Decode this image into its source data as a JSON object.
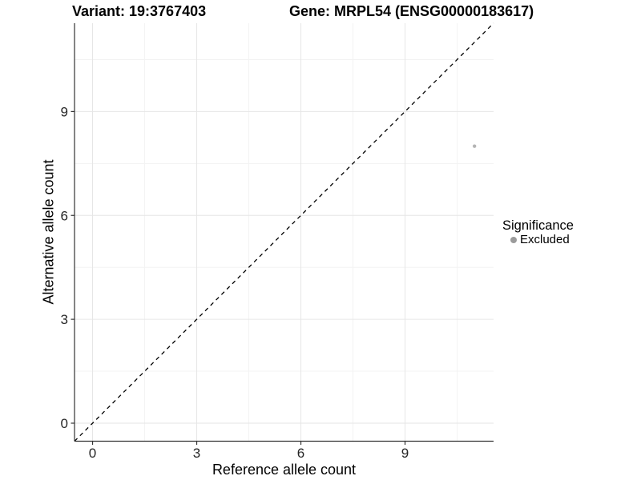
{
  "figure": {
    "background": "#ffffff"
  },
  "chart_data": {
    "type": "scatter",
    "title_parts": [
      "Variant: 19:3767403",
      "Gene: MRPL54 (ENSG00000183617)"
    ],
    "xlabel": "Reference allele count",
    "ylabel": "Alternative allele count",
    "xlim": [
      -0.52,
      11.55
    ],
    "ylim": [
      -0.52,
      11.55
    ],
    "xticks": [
      0,
      3,
      6,
      9
    ],
    "yticks": [
      0,
      3,
      6,
      9
    ],
    "xticks_minor": [
      1.5,
      4.5,
      7.5,
      10.5
    ],
    "yticks_minor": [
      1.5,
      4.5,
      7.5,
      10.5
    ],
    "grid": true,
    "series": [
      {
        "name": "Excluded",
        "points": [
          {
            "x": 11,
            "y": 8
          }
        ],
        "color": "#b4b4b4",
        "radius": 2.2
      }
    ],
    "identity_line": {
      "style": "dashed",
      "color": "#000000",
      "equation": "y = x"
    },
    "legend": {
      "title": "Significance",
      "position": "right",
      "entries": [
        {
          "label": "Excluded",
          "color": "#9b9b9b"
        }
      ]
    },
    "colors": {
      "grid_major": "#e6e6e6",
      "grid_minor": "#f3f3f3",
      "axis_line": "#333333",
      "tick_mark": "#333333",
      "tick_text": "#262626"
    }
  }
}
